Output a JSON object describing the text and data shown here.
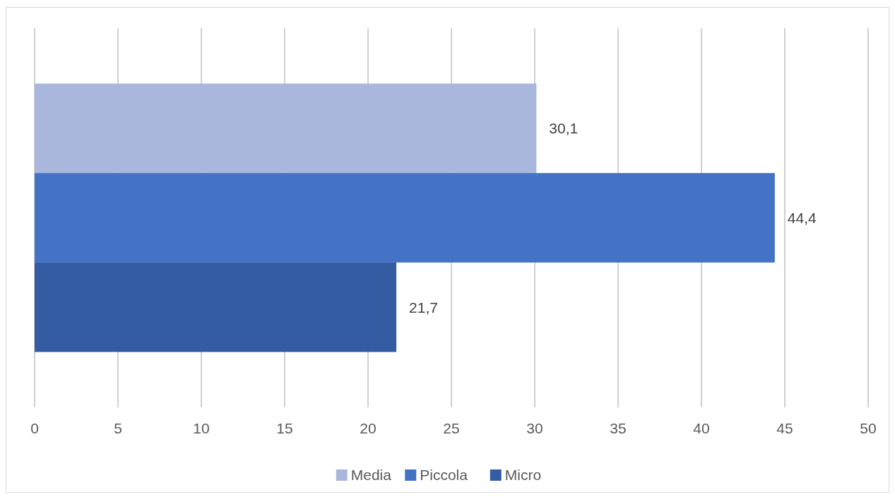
{
  "chart_data": {
    "type": "bar",
    "orientation": "horizontal",
    "categories": [
      null
    ],
    "series": [
      {
        "name": "Media",
        "color": "#a9b7dc",
        "values": [
          30.1
        ],
        "value_labels": [
          "30,1"
        ]
      },
      {
        "name": "Piccola",
        "color": "#4472c4",
        "values": [
          44.4
        ],
        "value_labels": [
          "44,4"
        ]
      },
      {
        "name": "Micro",
        "color": "#335ca2",
        "values": [
          21.7
        ],
        "value_labels": [
          "21,7"
        ]
      }
    ],
    "xlim": [
      0,
      50
    ],
    "xticks": [
      0,
      5,
      10,
      15,
      20,
      25,
      30,
      35,
      40,
      45,
      50
    ],
    "grid": "x",
    "legend": "bottom"
  }
}
